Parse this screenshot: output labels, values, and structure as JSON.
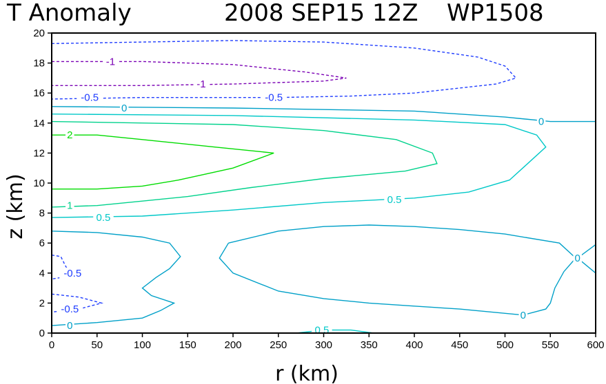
{
  "chart_data": {
    "type": "contour",
    "title": {
      "variable": "T Anomaly",
      "date": "2008 SEP15 12Z",
      "storm": "WP1508"
    },
    "xlabel": "r (km)",
    "ylabel": "z (km)",
    "xlim": [
      0,
      600
    ],
    "ylim": [
      0,
      20
    ],
    "xticks": [
      0,
      50,
      100,
      150,
      200,
      250,
      300,
      350,
      400,
      450,
      500,
      550,
      600
    ],
    "yticks": [
      0,
      2,
      4,
      6,
      8,
      10,
      12,
      14,
      16,
      18,
      20
    ],
    "colors": {
      "-1": "#7a00b4",
      "-0.5": "#1e3cff",
      "0": "#00a0c8",
      "0.5": "#00c8c8",
      "1": "#00d28c",
      "2": "#00dc00"
    },
    "contours": [
      {
        "level": -0.5,
        "dashed": true,
        "points": [
          [
            0,
            19.3
          ],
          [
            100,
            19.4
          ],
          [
            200,
            19.5
          ],
          [
            300,
            19.4
          ],
          [
            400,
            19.0
          ],
          [
            470,
            18.4
          ],
          [
            500,
            17.8
          ],
          [
            512,
            17.0
          ],
          [
            490,
            16.6
          ],
          [
            400,
            16.0
          ],
          [
            330,
            15.8
          ],
          [
            250,
            15.7
          ],
          [
            100,
            15.7
          ],
          [
            0,
            15.6
          ]
        ]
      },
      {
        "level": -1,
        "dashed": true,
        "points": [
          [
            0,
            18.1
          ],
          [
            100,
            18.1
          ],
          [
            200,
            17.9
          ],
          [
            280,
            17.4
          ],
          [
            325,
            17.0
          ],
          [
            300,
            16.8
          ],
          [
            200,
            16.6
          ],
          [
            100,
            16.5
          ],
          [
            0,
            16.5
          ]
        ]
      },
      {
        "level": 0,
        "dashed": false,
        "points": [
          [
            0,
            15.1
          ],
          [
            200,
            15.0
          ],
          [
            400,
            14.8
          ],
          [
            500,
            14.4
          ],
          [
            550,
            14.1
          ],
          [
            600,
            14.1
          ]
        ]
      },
      {
        "level": 0.5,
        "dashed": false,
        "points": [
          [
            0,
            14.6
          ],
          [
            200,
            14.5
          ],
          [
            400,
            14.2
          ],
          [
            500,
            13.9
          ],
          [
            535,
            13.2
          ],
          [
            545,
            12.4
          ],
          [
            525,
            11.3
          ],
          [
            505,
            10.2
          ],
          [
            460,
            9.4
          ],
          [
            400,
            9.0
          ],
          [
            300,
            8.7
          ],
          [
            200,
            8.2
          ],
          [
            100,
            7.8
          ],
          [
            0,
            7.7
          ]
        ]
      },
      {
        "level": 1,
        "dashed": false,
        "points": [
          [
            0,
            14.1
          ],
          [
            200,
            13.9
          ],
          [
            300,
            13.5
          ],
          [
            380,
            12.9
          ],
          [
            420,
            12.0
          ],
          [
            425,
            11.3
          ],
          [
            390,
            10.8
          ],
          [
            300,
            10.3
          ],
          [
            220,
            9.7
          ],
          [
            150,
            9.1
          ],
          [
            100,
            8.8
          ],
          [
            50,
            8.5
          ],
          [
            0,
            8.4
          ]
        ]
      },
      {
        "level": 2,
        "dashed": false,
        "points": [
          [
            0,
            13.2
          ],
          [
            50,
            13.2
          ],
          [
            100,
            12.9
          ],
          [
            180,
            12.4
          ],
          [
            245,
            12.0
          ],
          [
            200,
            11.0
          ],
          [
            140,
            10.2
          ],
          [
            100,
            9.8
          ],
          [
            50,
            9.6
          ],
          [
            0,
            9.6
          ]
        ]
      },
      {
        "level": 0,
        "dashed": false,
        "points": [
          [
            0,
            6.8
          ],
          [
            50,
            6.7
          ],
          [
            100,
            6.4
          ],
          [
            130,
            6.0
          ],
          [
            142,
            5.1
          ],
          [
            130,
            4.3
          ],
          [
            115,
            3.7
          ],
          [
            100,
            3.0
          ],
          [
            110,
            2.5
          ],
          [
            135,
            2.0
          ],
          [
            120,
            1.5
          ],
          [
            100,
            1.0
          ],
          [
            50,
            0.7
          ],
          [
            0,
            0.5
          ]
        ]
      },
      {
        "level": 0,
        "dashed": false,
        "points": [
          [
            195,
            6.0
          ],
          [
            250,
            6.8
          ],
          [
            300,
            7.1
          ],
          [
            350,
            7.2
          ],
          [
            400,
            7.1
          ],
          [
            450,
            6.9
          ],
          [
            500,
            6.6
          ],
          [
            560,
            6.0
          ],
          [
            578,
            5.0
          ],
          [
            565,
            4.1
          ],
          [
            555,
            3.0
          ],
          [
            550,
            2.0
          ],
          [
            545,
            1.6
          ],
          [
            520,
            1.2
          ],
          [
            450,
            1.6
          ],
          [
            400,
            1.8
          ],
          [
            350,
            2.0
          ],
          [
            300,
            2.3
          ],
          [
            250,
            2.8
          ],
          [
            200,
            4.0
          ],
          [
            185,
            5.0
          ],
          [
            195,
            6.0
          ]
        ]
      },
      {
        "level": 0,
        "dashed": false,
        "points": [
          [
            580,
            5.0
          ],
          [
            600,
            5.9
          ]
        ]
      },
      {
        "level": 0,
        "dashed": false,
        "points": [
          [
            580,
            5.0
          ],
          [
            600,
            4.0
          ]
        ]
      },
      {
        "level": -0.5,
        "dashed": true,
        "points": [
          [
            0,
            5.2
          ],
          [
            10,
            5.1
          ],
          [
            15,
            4.5
          ],
          [
            20,
            4.0
          ],
          [
            10,
            3.7
          ],
          [
            0,
            3.6
          ]
        ]
      },
      {
        "level": -0.5,
        "dashed": true,
        "points": [
          [
            0,
            2.6
          ],
          [
            30,
            2.4
          ],
          [
            55,
            2.0
          ],
          [
            30,
            1.6
          ],
          [
            0,
            1.4
          ]
        ]
      },
      {
        "level": 0.5,
        "dashed": false,
        "points": [
          [
            270,
            0.0
          ],
          [
            300,
            0.2
          ],
          [
            330,
            0.2
          ],
          [
            355,
            0.0
          ]
        ]
      }
    ],
    "labels": [
      {
        "text": "-1",
        "x": 65,
        "y": 18.1,
        "level": -1
      },
      {
        "text": "-1",
        "x": 165,
        "y": 16.6,
        "level": -1
      },
      {
        "text": "-0.5",
        "x": 42,
        "y": 15.7,
        "level": -0.5
      },
      {
        "text": "-0.5",
        "x": 245,
        "y": 15.7,
        "level": -0.5
      },
      {
        "text": "0",
        "x": 80,
        "y": 15.0,
        "level": 0
      },
      {
        "text": "0",
        "x": 540,
        "y": 14.1,
        "level": 0
      },
      {
        "text": "2",
        "x": 20,
        "y": 13.2,
        "level": 2
      },
      {
        "text": "1",
        "x": 20,
        "y": 8.5,
        "level": 1
      },
      {
        "text": "0.5",
        "x": 57,
        "y": 7.7,
        "level": 0.5
      },
      {
        "text": "0.5",
        "x": 378,
        "y": 8.9,
        "level": 0.5
      },
      {
        "text": "-0.5",
        "x": 23,
        "y": 4.0,
        "level": -0.5
      },
      {
        "text": "-0.5",
        "x": 20,
        "y": 1.6,
        "level": -0.5
      },
      {
        "text": "0",
        "x": 20,
        "y": 0.5,
        "level": 0
      },
      {
        "text": "0",
        "x": 520,
        "y": 1.2,
        "level": 0
      },
      {
        "text": "0",
        "x": 580,
        "y": 5.0,
        "level": 0
      },
      {
        "text": "0.5",
        "x": 298,
        "y": 0.2,
        "level": 0.5
      }
    ]
  }
}
